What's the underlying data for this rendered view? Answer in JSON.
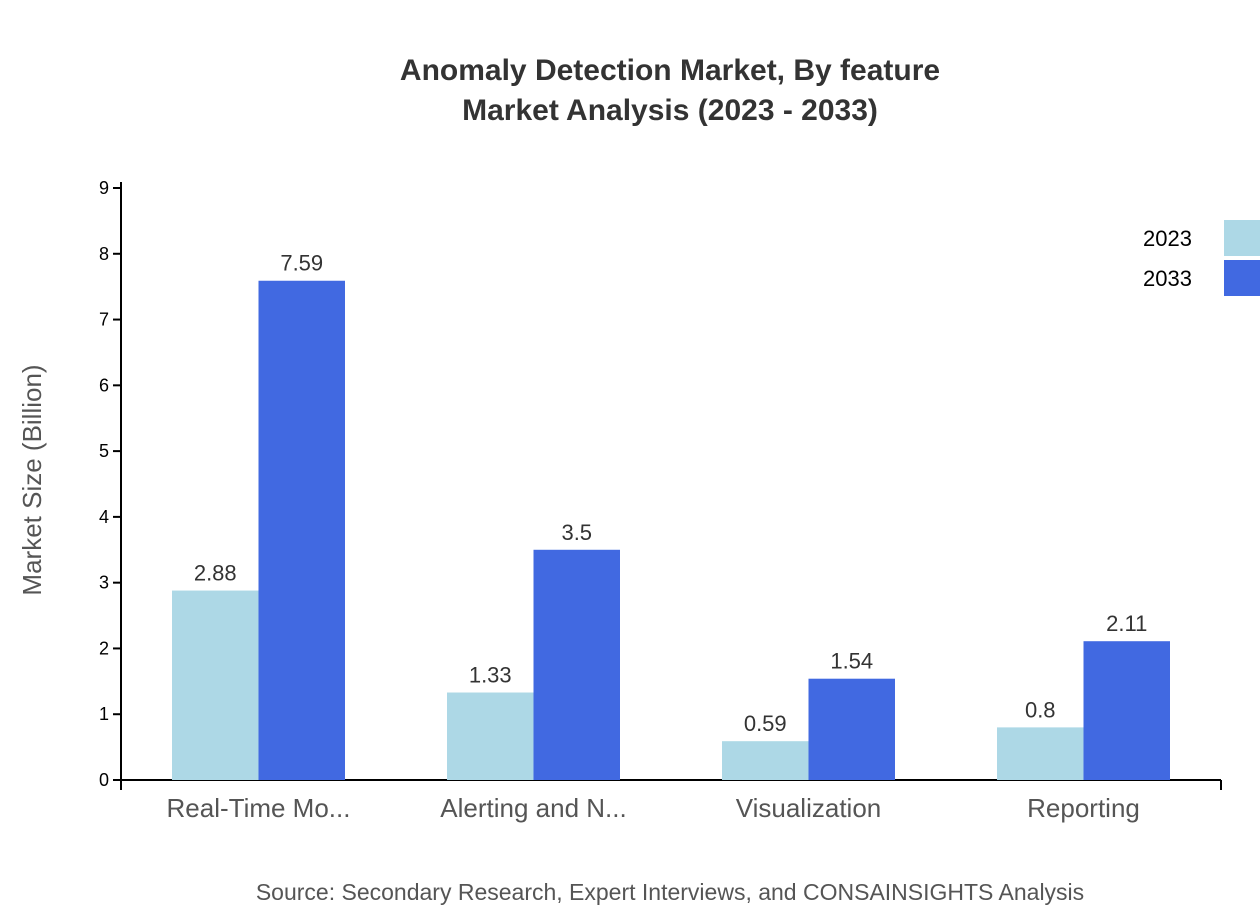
{
  "chart_data": {
    "type": "bar",
    "title": "Anomaly Detection Market, By feature",
    "subtitle": "Market Analysis (2023 - 2033)",
    "xlabel": "",
    "ylabel": "Market Size (Billion)",
    "ylim": [
      0,
      9
    ],
    "yticks": [
      "0",
      "1",
      "2",
      "3",
      "4",
      "5",
      "6",
      "7",
      "8",
      "9"
    ],
    "categories": [
      "Real-Time Mo...",
      "Alerting and N...",
      "Visualization",
      "Reporting"
    ],
    "series": [
      {
        "name": "2023",
        "color": "#add8e6",
        "values": [
          2.88,
          1.33,
          0.59,
          0.8
        ],
        "labels": [
          "2.88",
          "1.33",
          "0.59",
          "0.8"
        ]
      },
      {
        "name": "2033",
        "color": "#4169e1",
        "values": [
          7.59,
          3.5,
          1.54,
          2.11
        ],
        "labels": [
          "7.59",
          "3.5",
          "1.54",
          "2.11"
        ]
      }
    ],
    "legend": "top-right",
    "grid": false,
    "source": "Source: Secondary Research, Expert Interviews, and CONSAINSIGHTS Analysis"
  }
}
